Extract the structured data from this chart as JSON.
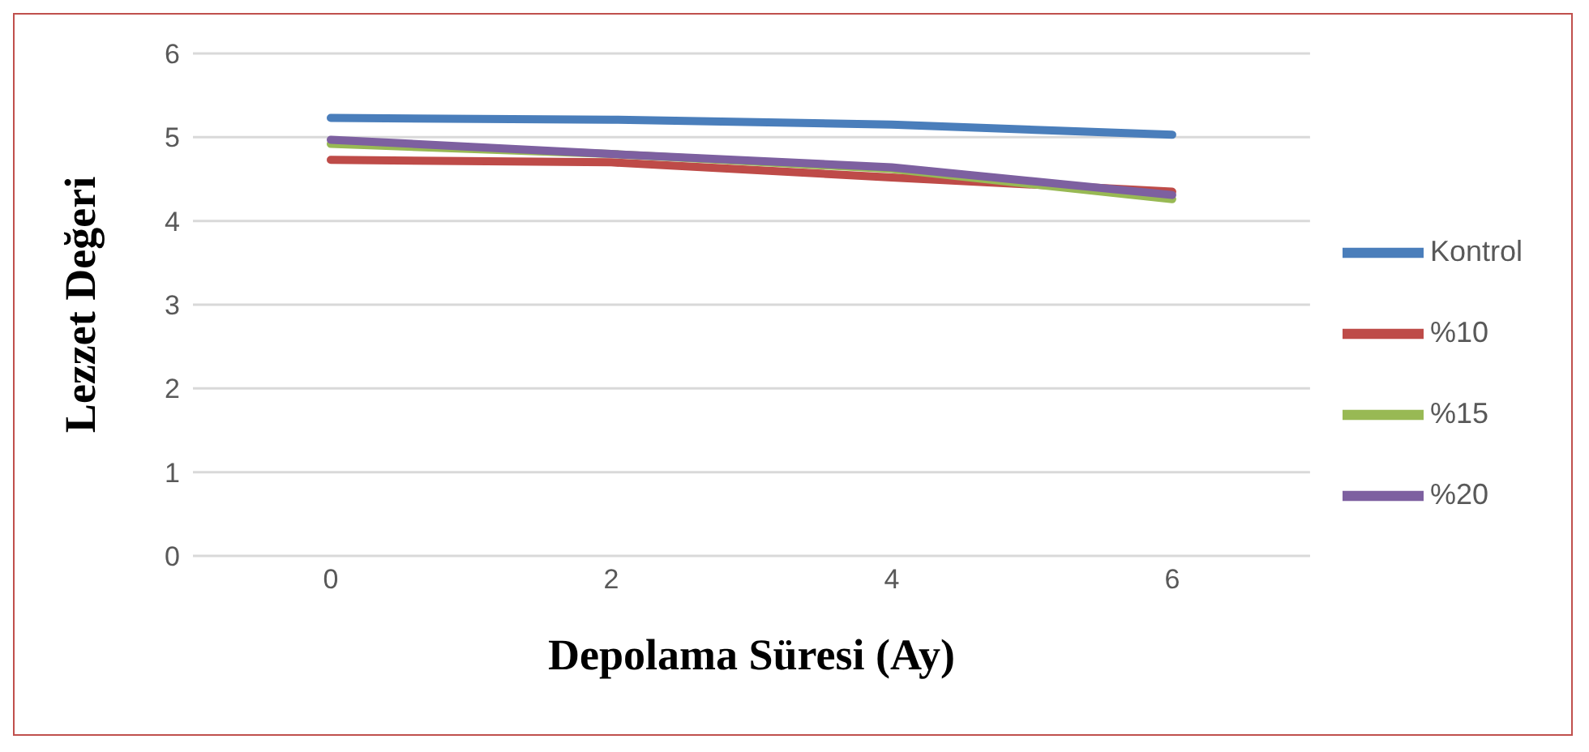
{
  "chart_data": {
    "type": "line",
    "xlabel": "Depolama Süresi (Ay)",
    "ylabel": "Lezzet Değeri",
    "categories": [
      "0",
      "2",
      "4",
      "6"
    ],
    "series": [
      {
        "name": "Kontrol",
        "color": "#4a7ebb",
        "values": [
          5.23,
          5.21,
          5.15,
          5.03
        ]
      },
      {
        "name": "%10",
        "color": "#be4b48",
        "values": [
          4.73,
          4.7,
          4.52,
          4.35
        ]
      },
      {
        "name": "%15",
        "color": "#98b954",
        "values": [
          4.92,
          4.8,
          4.62,
          4.26
        ]
      },
      {
        "name": "%20",
        "color": "#7d60a0",
        "values": [
          4.97,
          4.8,
          4.64,
          4.31
        ]
      }
    ],
    "ylim": [
      0,
      6
    ],
    "yticks": [
      0,
      1,
      2,
      3,
      4,
      5,
      6
    ],
    "grid": "y",
    "legend": "right",
    "marker": "none",
    "line_style": "solid"
  }
}
